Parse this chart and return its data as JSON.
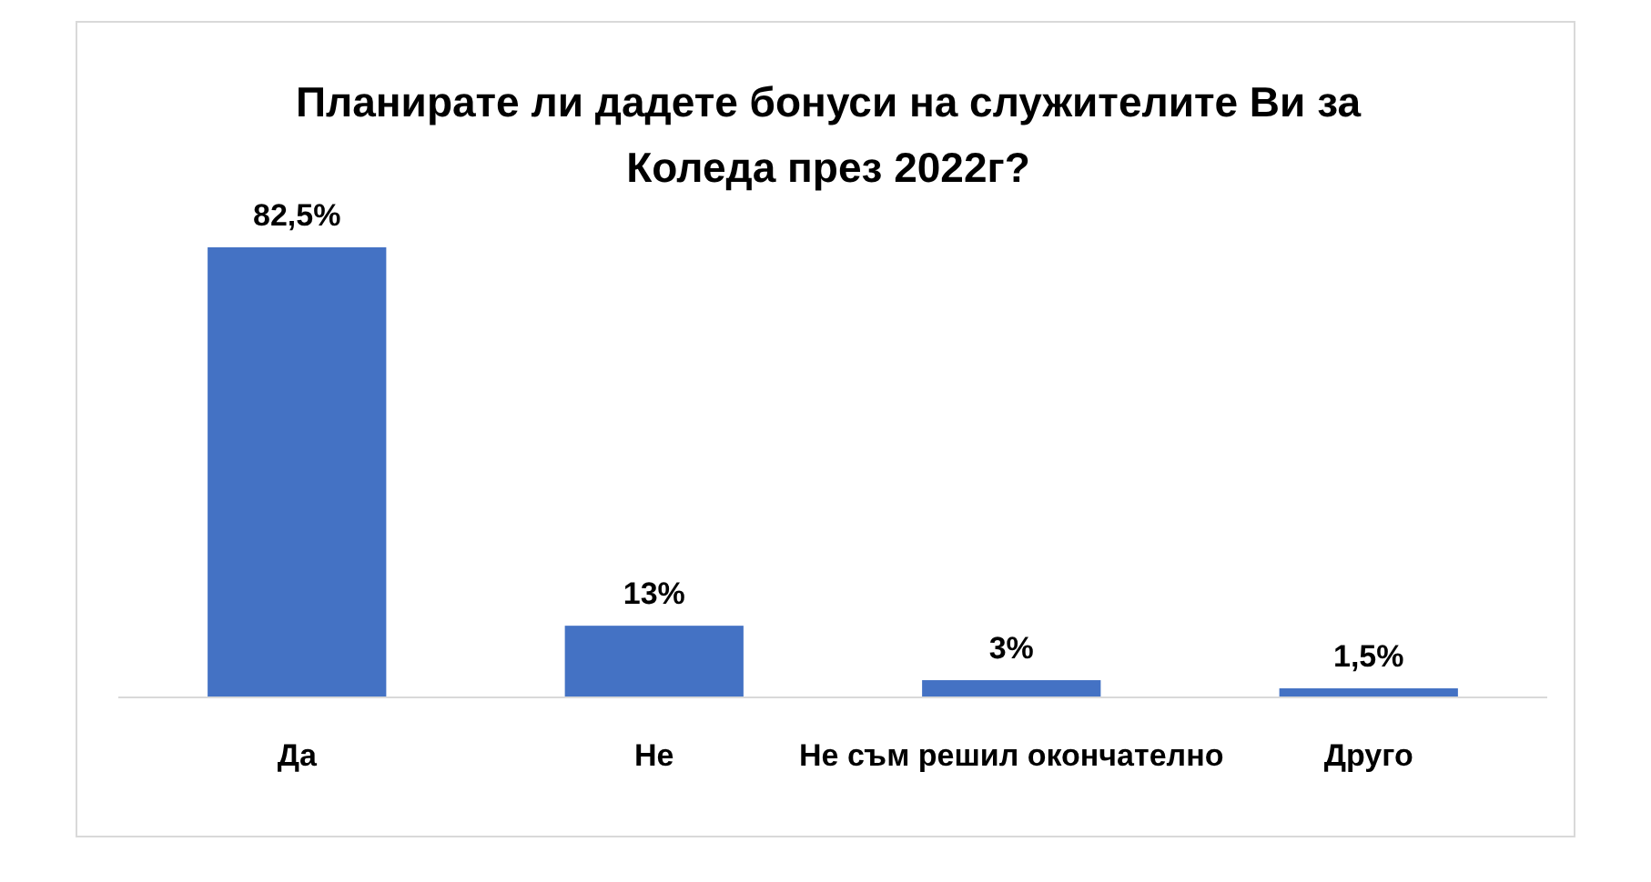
{
  "chart_data": {
    "type": "bar",
    "title": "Планирате ли дадете бонуси на служителите Ви за Коледа през 2022г?",
    "categories": [
      "Да",
      "Не",
      "Не съм решил окончателно",
      "Друго"
    ],
    "values": [
      82.5,
      13,
      3,
      1.5
    ],
    "value_labels": [
      "82,5%",
      "13%",
      "3%",
      "1,5%"
    ],
    "color": "#4472c4"
  }
}
